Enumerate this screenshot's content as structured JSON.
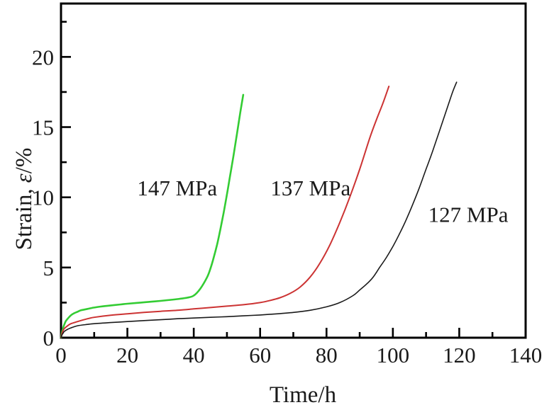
{
  "figure": {
    "background": "#ffffff",
    "axis_color": "#000000",
    "text_color": "#1a1a1a"
  },
  "chart_data": {
    "type": "line",
    "title": "",
    "xlabel": "Time/h",
    "ylabel": "Strain, ε/%",
    "ylabel_parts": {
      "prefix": "Strain,",
      "symbol": "ε",
      "suffix": "/%"
    },
    "xlim": [
      0,
      140
    ],
    "ylim": [
      0,
      23.8
    ],
    "x_major_ticks": [
      0,
      20,
      40,
      60,
      80,
      100,
      120,
      140
    ],
    "x_minor_ticks": [
      10,
      30,
      50,
      70,
      90,
      110,
      130
    ],
    "y_major_ticks": [
      0,
      5,
      10,
      15,
      20
    ],
    "y_minor_ticks": [
      2.5,
      7.5,
      12.5,
      17.5,
      22.5
    ],
    "grid": false,
    "legend_position": "inline-curve-labels",
    "series": [
      {
        "name": "147 MPa",
        "label": "147 MPa",
        "color": "#33cc33",
        "stroke_width": 2.6,
        "label_pos": {
          "x": 35,
          "y": 10.7
        },
        "points": [
          [
            0,
            0
          ],
          [
            0.3,
            0.4
          ],
          [
            0.7,
            0.75
          ],
          [
            1,
            0.95
          ],
          [
            1.5,
            1.2
          ],
          [
            2,
            1.35
          ],
          [
            3,
            1.6
          ],
          [
            4,
            1.75
          ],
          [
            5,
            1.85
          ],
          [
            6,
            1.95
          ],
          [
            8,
            2.05
          ],
          [
            10,
            2.15
          ],
          [
            12,
            2.22
          ],
          [
            15,
            2.3
          ],
          [
            18,
            2.37
          ],
          [
            20,
            2.42
          ],
          [
            24,
            2.5
          ],
          [
            28,
            2.58
          ],
          [
            32,
            2.67
          ],
          [
            35,
            2.75
          ],
          [
            38,
            2.85
          ],
          [
            40,
            3.0
          ],
          [
            42,
            3.5
          ],
          [
            44,
            4.3
          ],
          [
            45,
            4.9
          ],
          [
            46,
            5.7
          ],
          [
            47,
            6.6
          ],
          [
            48,
            7.7
          ],
          [
            49,
            8.9
          ],
          [
            50,
            10.2
          ],
          [
            51,
            11.6
          ],
          [
            52,
            13.0
          ],
          [
            53,
            14.5
          ],
          [
            54,
            16.0
          ],
          [
            54.9,
            17.3
          ]
        ]
      },
      {
        "name": "137 MPa",
        "label": "137 MPa",
        "color": "#cc3333",
        "stroke_width": 2.0,
        "label_pos": {
          "x": 75.2,
          "y": 10.7
        },
        "points": [
          [
            0,
            0
          ],
          [
            0.3,
            0.3
          ],
          [
            0.7,
            0.55
          ],
          [
            1,
            0.65
          ],
          [
            2,
            0.85
          ],
          [
            3,
            1.0
          ],
          [
            5,
            1.15
          ],
          [
            8,
            1.35
          ],
          [
            10,
            1.45
          ],
          [
            15,
            1.6
          ],
          [
            20,
            1.7
          ],
          [
            25,
            1.8
          ],
          [
            30,
            1.88
          ],
          [
            35,
            1.95
          ],
          [
            40,
            2.05
          ],
          [
            45,
            2.15
          ],
          [
            50,
            2.25
          ],
          [
            55,
            2.35
          ],
          [
            60,
            2.5
          ],
          [
            63,
            2.65
          ],
          [
            66,
            2.85
          ],
          [
            69,
            3.15
          ],
          [
            72,
            3.6
          ],
          [
            75,
            4.3
          ],
          [
            78,
            5.3
          ],
          [
            81,
            6.6
          ],
          [
            84,
            8.2
          ],
          [
            87,
            10.0
          ],
          [
            90,
            12.0
          ],
          [
            93,
            14.2
          ],
          [
            95,
            15.5
          ],
          [
            97,
            16.7
          ],
          [
            98.8,
            17.9
          ]
        ]
      },
      {
        "name": "127 MPa",
        "label": "127 MPa",
        "color": "#1a1a1a",
        "stroke_width": 1.6,
        "label_pos": {
          "x": 122.7,
          "y": 8.8
        },
        "points": [
          [
            0,
            0
          ],
          [
            0.3,
            0.2
          ],
          [
            0.7,
            0.35
          ],
          [
            1,
            0.45
          ],
          [
            2,
            0.6
          ],
          [
            3,
            0.7
          ],
          [
            5,
            0.85
          ],
          [
            8,
            0.95
          ],
          [
            10,
            1.0
          ],
          [
            15,
            1.08
          ],
          [
            20,
            1.15
          ],
          [
            25,
            1.22
          ],
          [
            30,
            1.28
          ],
          [
            35,
            1.35
          ],
          [
            40,
            1.4
          ],
          [
            45,
            1.45
          ],
          [
            50,
            1.5
          ],
          [
            55,
            1.56
          ],
          [
            60,
            1.62
          ],
          [
            65,
            1.7
          ],
          [
            70,
            1.8
          ],
          [
            75,
            1.95
          ],
          [
            80,
            2.2
          ],
          [
            84,
            2.5
          ],
          [
            88,
            3.0
          ],
          [
            90,
            3.4
          ],
          [
            92,
            3.8
          ],
          [
            94,
            4.3
          ],
          [
            96,
            5.0
          ],
          [
            98,
            5.7
          ],
          [
            100,
            6.5
          ],
          [
            102,
            7.4
          ],
          [
            104,
            8.4
          ],
          [
            106,
            9.5
          ],
          [
            108,
            10.7
          ],
          [
            110,
            12.0
          ],
          [
            112,
            13.3
          ],
          [
            114,
            14.7
          ],
          [
            116,
            16.1
          ],
          [
            118,
            17.5
          ],
          [
            119.2,
            18.2
          ]
        ]
      }
    ]
  }
}
